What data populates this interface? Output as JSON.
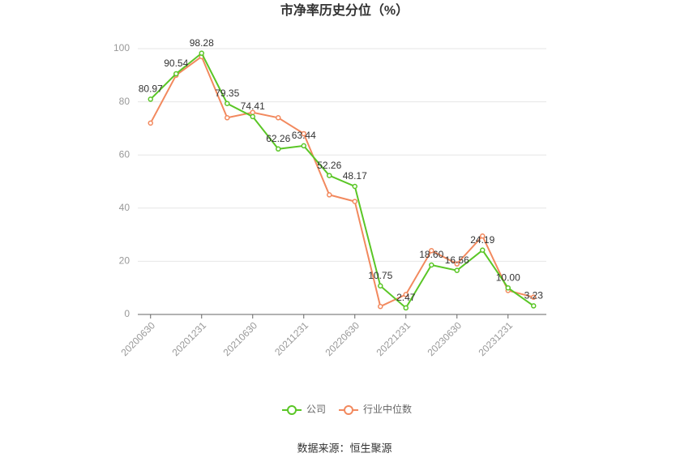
{
  "chart_data": {
    "type": "line",
    "title": "市净率历史分位（%）",
    "categories": [
      "20200630",
      null,
      "20201231",
      null,
      "20210630",
      null,
      "20211231",
      null,
      "20220630",
      null,
      "20221231",
      null,
      "20230630",
      null,
      "20231231",
      null
    ],
    "series": [
      {
        "name": "公司",
        "color": "#5ac626",
        "values": [
          80.97,
          90.54,
          98.28,
          79.35,
          74.41,
          62.26,
          63.44,
          52.26,
          48.17,
          10.75,
          2.47,
          18.6,
          16.56,
          24.19,
          10,
          3.23
        ],
        "value_labels": [
          "80.97",
          "90.54",
          "98.28",
          "79.35",
          "74.41",
          "62.26",
          "63.44",
          "52.26",
          "48.17",
          "10.75",
          "2.47",
          "18.60",
          "16.56",
          "24.19",
          "10.00",
          "3.23"
        ]
      },
      {
        "name": "行业中位数",
        "color": "#f2895e",
        "values": [
          72,
          90,
          97,
          74,
          76,
          74,
          68,
          45,
          42.5,
          3,
          7.5,
          24,
          19,
          29.5,
          9,
          6.5
        ]
      }
    ],
    "ylim": [
      0,
      100
    ],
    "yticks": [
      0,
      20,
      40,
      60,
      80,
      100
    ],
    "grid": true,
    "legend": "bottom",
    "source": "数据来源：恒生聚源"
  }
}
